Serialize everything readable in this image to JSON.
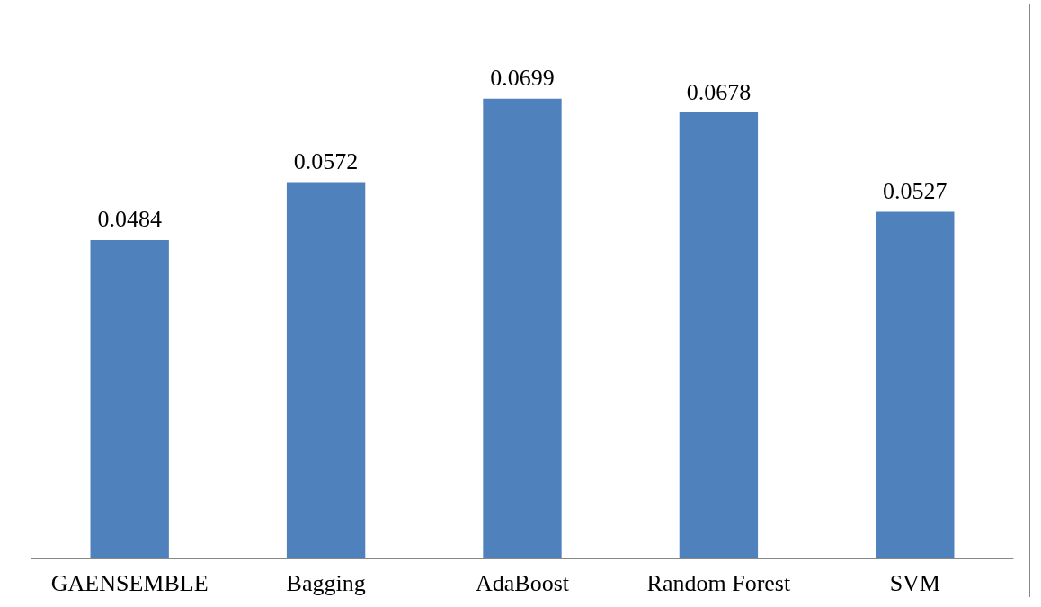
{
  "chart_data": {
    "type": "bar",
    "categories": [
      "GAENSEMBLE",
      "Bagging",
      "AdaBoost",
      "Random Forest",
      "SVM"
    ],
    "values": [
      0.0484,
      0.0572,
      0.0699,
      0.0678,
      0.0527
    ],
    "color": "#4f81bd",
    "data_labels": true,
    "tick_labels": "x"
  }
}
